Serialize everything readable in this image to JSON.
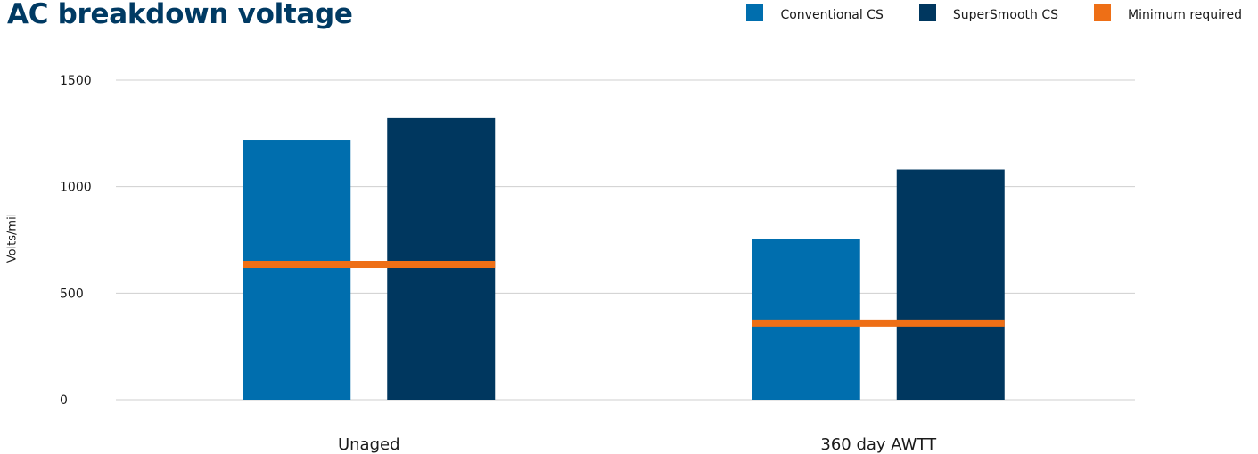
{
  "chart_data": {
    "type": "bar",
    "title": "AC breakdown voltage",
    "ylabel": "Volts/mil",
    "xlabel": "",
    "ylim": [
      0,
      1500
    ],
    "yticks": [
      0,
      500,
      1000,
      1500
    ],
    "grid": true,
    "legend_position": "top-right",
    "categories": [
      "Unaged",
      "360 day AWTT"
    ],
    "series": [
      {
        "name": "Conventional CS",
        "color": "#006eae",
        "values": [
          1220,
          755
        ]
      },
      {
        "name": "SuperSmooth CS",
        "color": "#00375f",
        "values": [
          1325,
          1080
        ]
      }
    ],
    "minimum_required": {
      "name": "Minimum required",
      "color": "#ee6f16",
      "values": [
        635,
        360
      ]
    }
  }
}
